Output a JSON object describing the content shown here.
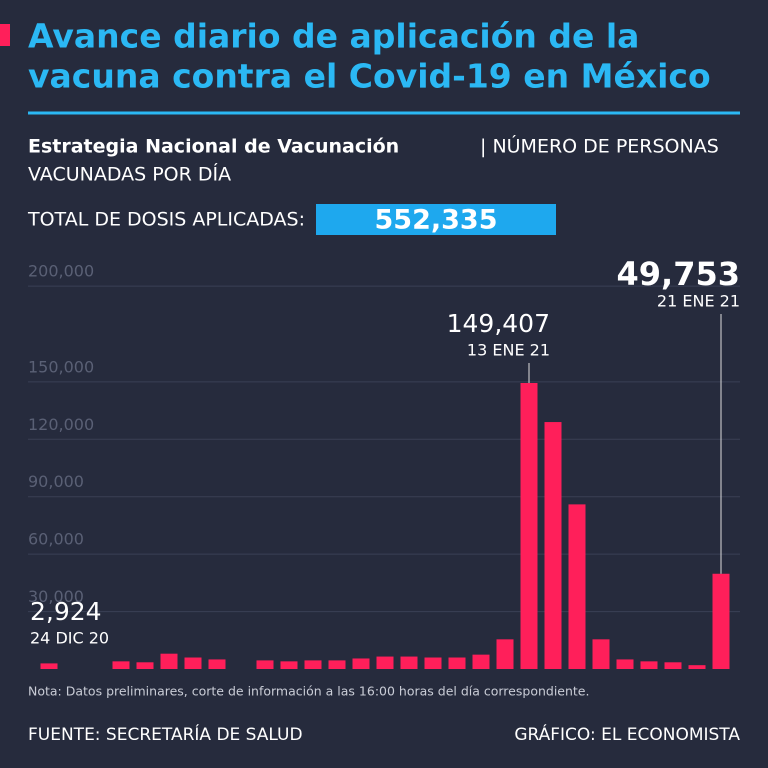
{
  "chart_data": {
    "type": "bar",
    "title": [
      "Avance diario de aplicación de la",
      "vacuna contra el Covid-19 en México"
    ],
    "subtitle_bold": "Estrategia Nacional de Vacunación",
    "subtitle": [
      "| NÚMERO DE PERSONAS",
      "VACUNADAS POR DÍA"
    ],
    "total_label": "TOTAL DE DOSIS APLICADAS:",
    "total_value": "552,335",
    "categories": [
      "24 DIC 20",
      null,
      null,
      null,
      null,
      null,
      null,
      null,
      null,
      null,
      null,
      null,
      null,
      null,
      null,
      null,
      null,
      null,
      null,
      null,
      "13 ENE 21",
      null,
      null,
      null,
      null,
      null,
      null,
      null,
      "21 ENE 21"
    ],
    "values": [
      2924,
      0,
      0,
      4000,
      3500,
      8000,
      6000,
      5000,
      0,
      4500,
      4000,
      4500,
      4500,
      5500,
      6500,
      6500,
      6000,
      6000,
      7500,
      15500,
      149407,
      129000,
      86000,
      15500,
      5000,
      4000,
      3500,
      2000,
      49753
    ],
    "value_labels": [
      "2,924",
      null,
      null,
      null,
      null,
      null,
      null,
      null,
      null,
      null,
      null,
      null,
      null,
      null,
      null,
      null,
      null,
      null,
      null,
      null,
      "149,407",
      null,
      null,
      null,
      null,
      null,
      null,
      null,
      "49,753"
    ],
    "color": "#ff1f5a",
    "ylim": [
      0,
      210000
    ],
    "yticks": [
      {
        "value": 30000,
        "label": "30,000"
      },
      {
        "value": 60000,
        "label": "60,000"
      },
      {
        "value": 90000,
        "label": "90,000"
      },
      {
        "value": 120000,
        "label": "120,000"
      },
      {
        "value": 150000,
        "label": "150,000"
      },
      {
        "value": 200000,
        "label": "200,000"
      }
    ],
    "grid": true,
    "note": "Nota: Datos preliminares, corte de información a las 16:00 horas del día correspondiente.",
    "source": "FUENTE: SECRETARÍA DE SALUD",
    "credit": "GRÁFICO: EL ECONOMISTA"
  }
}
